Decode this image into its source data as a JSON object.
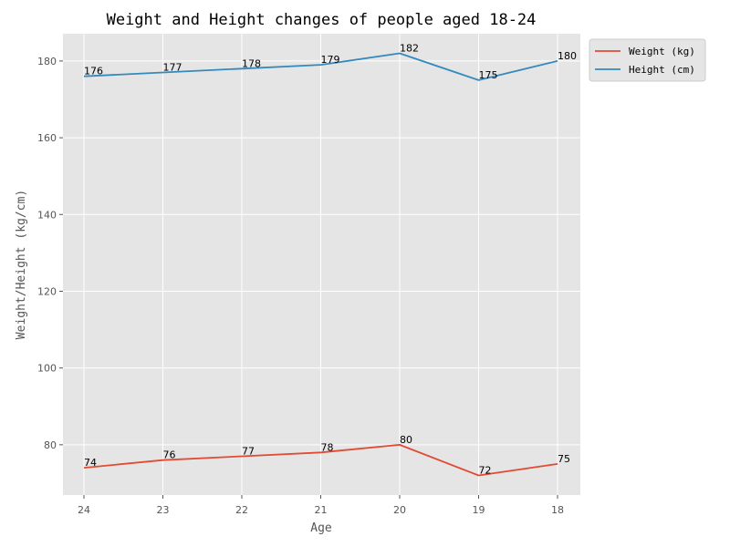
{
  "chart_data": {
    "type": "line",
    "title": "Weight and Height changes of people aged 18-24",
    "xlabel": "Age",
    "ylabel": "Weight/Height (kg/cm)",
    "categories": [
      "24",
      "23",
      "22",
      "21",
      "20",
      "19",
      "18"
    ],
    "series": [
      {
        "name": "Weight (kg)",
        "values": [
          74,
          76,
          77,
          78,
          80,
          72,
          75
        ],
        "color": "#E24A33"
      },
      {
        "name": "Height (cm)",
        "values": [
          176,
          177,
          178,
          179,
          182,
          175,
          180
        ],
        "color": "#348ABD"
      }
    ],
    "ylim": [
      66.9,
      187.1
    ],
    "yticks": [
      80,
      100,
      120,
      140,
      160,
      180
    ],
    "grid": true,
    "legend_position": "outside-upper-right",
    "colors": {
      "plot_background": "#E5E5E5",
      "grid": "#FFFFFF",
      "tick_text": "#555555"
    }
  }
}
